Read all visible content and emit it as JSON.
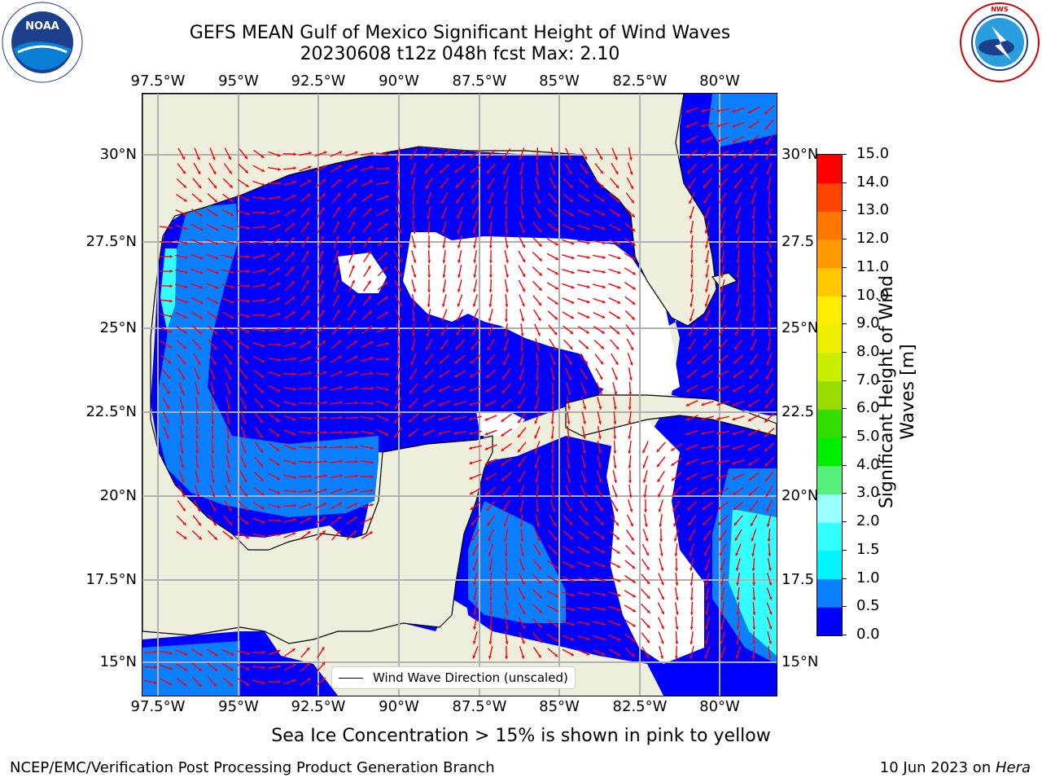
{
  "title_line1": "GEFS MEAN Gulf of Mexico Significant Height of Wind Waves",
  "title_line2": "20230608 t12z 048h fcst   Max: 2.10",
  "logos": {
    "left": "NOAA",
    "right": "NWS"
  },
  "lon_ticks": [
    "97.5°W",
    "95°W",
    "92.5°W",
    "90°W",
    "87.5°W",
    "85°W",
    "82.5°W",
    "80°W"
  ],
  "lat_ticks_left": [
    "30°N",
    "27.5°N",
    "25°N",
    "22.5°N",
    "20°N",
    "17.5°N",
    "15°N"
  ],
  "lat_ticks_right": [
    "30°N",
    "27.5",
    "25°N",
    "22.5",
    "20°N",
    "17.5",
    "15°N"
  ],
  "legend_label": "Wind Wave Direction (unscaled)",
  "colorbar": {
    "label_line1": "Significant Height of Wind",
    "label_line2": "Waves [m]",
    "ticks": [
      "0.0",
      "0.5",
      "1.0",
      "1.5",
      "2.0",
      "3.0",
      "4.0",
      "5.0",
      "6.0",
      "7.0",
      "8.0",
      "9.0",
      "10.0",
      "11.0",
      "12.0",
      "13.0",
      "14.0",
      "15.0"
    ],
    "colors": [
      "#0000ff",
      "#0a7fff",
      "#00f5ff",
      "#33ffff",
      "#99ffff",
      "#55f07a",
      "#00ee00",
      "#33dd00",
      "#99dd00",
      "#c8ee00",
      "#eeee00",
      "#ffee00",
      "#ffc800",
      "#ff9900",
      "#ff7700",
      "#ff4400",
      "#ff0000"
    ]
  },
  "map_colors": {
    "land": "#eeeedd",
    "ocean_low": "#0000ff",
    "ocean_mid": "#0a7fff",
    "ocean_high": "#33ffff",
    "arrow": "#ff0000"
  },
  "subtitle": "Sea Ice Concentration > 15% is shown in pink to yellow",
  "footer_left": "NCEP/EMC/Verification Post Processing Product Generation Branch",
  "footer_right_date": "10 Jun 2023 on ",
  "footer_right_host": "Hera"
}
